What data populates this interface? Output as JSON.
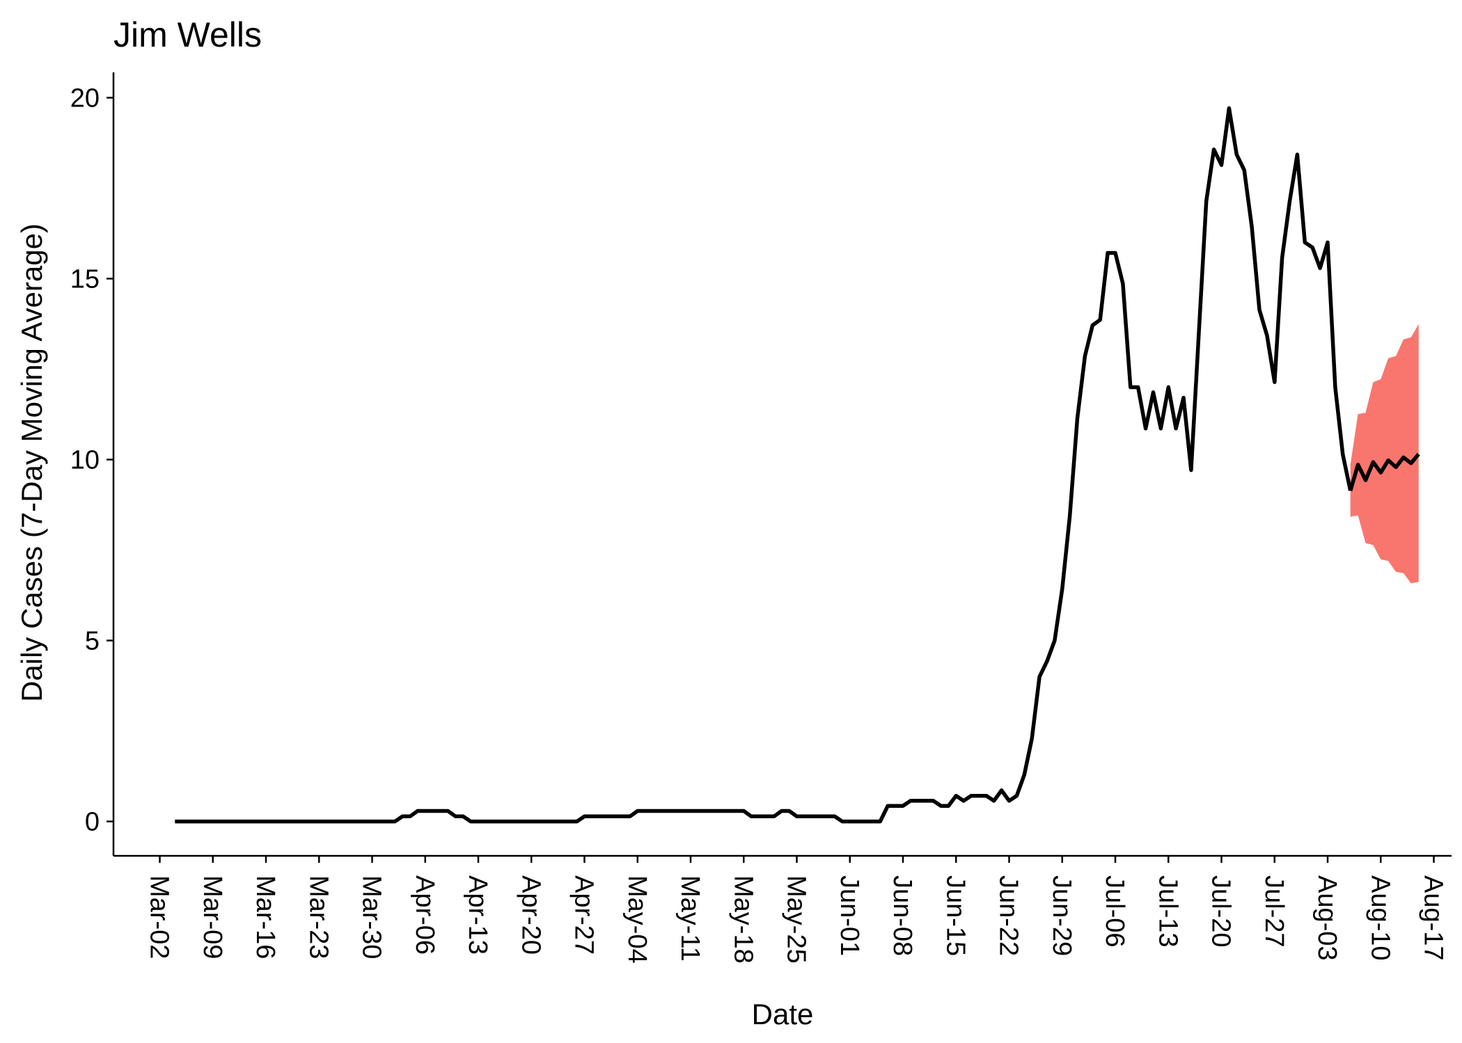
{
  "chart_data": {
    "type": "line",
    "title": "Jim Wells",
    "xlabel": "Date",
    "ylabel": "Daily Cases (7-Day Moving Average)",
    "x_ticks": [
      "Mar-02",
      "Mar-09",
      "Mar-16",
      "Mar-23",
      "Mar-30",
      "Apr-06",
      "Apr-13",
      "Apr-20",
      "Apr-27",
      "May-04",
      "May-11",
      "May-18",
      "May-25",
      "Jun-01",
      "Jun-08",
      "Jun-15",
      "Jun-22",
      "Jun-29",
      "Jul-06",
      "Jul-13",
      "Jul-20",
      "Jul-27",
      "Aug-03",
      "Aug-10",
      "Aug-17"
    ],
    "y_ticks": [
      "0",
      "5",
      "10",
      "15",
      "20"
    ],
    "ylim": [
      -0.95,
      20.7
    ],
    "grid": false,
    "legend": "none",
    "colors": {
      "line": "#000000",
      "band": "#f8766d"
    },
    "series": [
      {
        "points": [
          [
            "2020-03-04",
            0.0
          ],
          [
            "2020-03-05",
            0.0
          ],
          [
            "2020-03-06",
            0.0
          ],
          [
            "2020-03-07",
            0.0
          ],
          [
            "2020-03-08",
            0.0
          ],
          [
            "2020-03-09",
            0.0
          ],
          [
            "2020-03-10",
            0.0
          ],
          [
            "2020-03-11",
            0.0
          ],
          [
            "2020-03-12",
            0.0
          ],
          [
            "2020-03-13",
            0.0
          ],
          [
            "2020-03-14",
            0.0
          ],
          [
            "2020-03-15",
            0.0
          ],
          [
            "2020-03-16",
            0.0
          ],
          [
            "2020-03-17",
            0.0
          ],
          [
            "2020-03-18",
            0.0
          ],
          [
            "2020-03-19",
            0.0
          ],
          [
            "2020-03-20",
            0.0
          ],
          [
            "2020-03-21",
            0.0
          ],
          [
            "2020-03-22",
            0.0
          ],
          [
            "2020-03-23",
            0.0
          ],
          [
            "2020-03-24",
            0.0
          ],
          [
            "2020-03-25",
            0.0
          ],
          [
            "2020-03-26",
            0.0
          ],
          [
            "2020-03-27",
            0.0
          ],
          [
            "2020-03-28",
            0.0
          ],
          [
            "2020-03-29",
            0.0
          ],
          [
            "2020-03-30",
            0.0
          ],
          [
            "2020-03-31",
            0.0
          ],
          [
            "2020-04-01",
            0.0
          ],
          [
            "2020-04-02",
            0.0
          ],
          [
            "2020-04-03",
            0.14
          ],
          [
            "2020-04-04",
            0.14
          ],
          [
            "2020-04-05",
            0.29
          ],
          [
            "2020-04-06",
            0.29
          ],
          [
            "2020-04-07",
            0.29
          ],
          [
            "2020-04-08",
            0.29
          ],
          [
            "2020-04-09",
            0.29
          ],
          [
            "2020-04-10",
            0.14
          ],
          [
            "2020-04-11",
            0.14
          ],
          [
            "2020-04-12",
            0.0
          ],
          [
            "2020-04-13",
            0.0
          ],
          [
            "2020-04-14",
            0.0
          ],
          [
            "2020-04-15",
            0.0
          ],
          [
            "2020-04-16",
            0.0
          ],
          [
            "2020-04-17",
            0.0
          ],
          [
            "2020-04-18",
            0.0
          ],
          [
            "2020-04-19",
            0.0
          ],
          [
            "2020-04-20",
            0.0
          ],
          [
            "2020-04-21",
            0.0
          ],
          [
            "2020-04-22",
            0.0
          ],
          [
            "2020-04-23",
            0.0
          ],
          [
            "2020-04-24",
            0.0
          ],
          [
            "2020-04-25",
            0.0
          ],
          [
            "2020-04-26",
            0.0
          ],
          [
            "2020-04-27",
            0.14
          ],
          [
            "2020-04-28",
            0.14
          ],
          [
            "2020-04-29",
            0.14
          ],
          [
            "2020-04-30",
            0.14
          ],
          [
            "2020-05-01",
            0.14
          ],
          [
            "2020-05-02",
            0.14
          ],
          [
            "2020-05-03",
            0.14
          ],
          [
            "2020-05-04",
            0.29
          ],
          [
            "2020-05-05",
            0.29
          ],
          [
            "2020-05-06",
            0.29
          ],
          [
            "2020-05-07",
            0.29
          ],
          [
            "2020-05-08",
            0.29
          ],
          [
            "2020-05-09",
            0.29
          ],
          [
            "2020-05-10",
            0.29
          ],
          [
            "2020-05-11",
            0.29
          ],
          [
            "2020-05-12",
            0.29
          ],
          [
            "2020-05-13",
            0.29
          ],
          [
            "2020-05-14",
            0.29
          ],
          [
            "2020-05-15",
            0.29
          ],
          [
            "2020-05-16",
            0.29
          ],
          [
            "2020-05-17",
            0.29
          ],
          [
            "2020-05-18",
            0.29
          ],
          [
            "2020-05-19",
            0.14
          ],
          [
            "2020-05-20",
            0.14
          ],
          [
            "2020-05-21",
            0.14
          ],
          [
            "2020-05-22",
            0.14
          ],
          [
            "2020-05-23",
            0.29
          ],
          [
            "2020-05-24",
            0.29
          ],
          [
            "2020-05-25",
            0.14
          ],
          [
            "2020-05-26",
            0.14
          ],
          [
            "2020-05-27",
            0.14
          ],
          [
            "2020-05-28",
            0.14
          ],
          [
            "2020-05-29",
            0.14
          ],
          [
            "2020-05-30",
            0.14
          ],
          [
            "2020-05-31",
            0.0
          ],
          [
            "2020-06-01",
            0.0
          ],
          [
            "2020-06-02",
            0.0
          ],
          [
            "2020-06-03",
            0.0
          ],
          [
            "2020-06-04",
            0.0
          ],
          [
            "2020-06-05",
            0.0
          ],
          [
            "2020-06-06",
            0.43
          ],
          [
            "2020-06-07",
            0.43
          ],
          [
            "2020-06-08",
            0.43
          ],
          [
            "2020-06-09",
            0.57
          ],
          [
            "2020-06-10",
            0.57
          ],
          [
            "2020-06-11",
            0.57
          ],
          [
            "2020-06-12",
            0.57
          ],
          [
            "2020-06-13",
            0.43
          ],
          [
            "2020-06-14",
            0.43
          ],
          [
            "2020-06-15",
            0.71
          ],
          [
            "2020-06-16",
            0.57
          ],
          [
            "2020-06-17",
            0.71
          ],
          [
            "2020-06-18",
            0.71
          ],
          [
            "2020-06-19",
            0.71
          ],
          [
            "2020-06-20",
            0.57
          ],
          [
            "2020-06-21",
            0.86
          ],
          [
            "2020-06-22",
            0.57
          ],
          [
            "2020-06-23",
            0.71
          ],
          [
            "2020-06-24",
            1.29
          ],
          [
            "2020-06-25",
            2.29
          ],
          [
            "2020-06-26",
            4.0
          ],
          [
            "2020-06-27",
            4.43
          ],
          [
            "2020-06-28",
            5.0
          ],
          [
            "2020-06-29",
            6.43
          ],
          [
            "2020-06-30",
            8.43
          ],
          [
            "2020-07-01",
            11.14
          ],
          [
            "2020-07-02",
            12.86
          ],
          [
            "2020-07-03",
            13.71
          ],
          [
            "2020-07-04",
            13.86
          ],
          [
            "2020-07-05",
            15.71
          ],
          [
            "2020-07-06",
            15.71
          ],
          [
            "2020-07-07",
            14.86
          ],
          [
            "2020-07-08",
            12.0
          ],
          [
            "2020-07-09",
            12.0
          ],
          [
            "2020-07-10",
            10.86
          ],
          [
            "2020-07-11",
            11.86
          ],
          [
            "2020-07-12",
            10.86
          ],
          [
            "2020-07-13",
            12.0
          ],
          [
            "2020-07-14",
            10.86
          ],
          [
            "2020-07-15",
            11.71
          ],
          [
            "2020-07-16",
            9.71
          ],
          [
            "2020-07-17",
            13.43
          ],
          [
            "2020-07-18",
            17.14
          ],
          [
            "2020-07-19",
            18.57
          ],
          [
            "2020-07-20",
            18.14
          ],
          [
            "2020-07-21",
            19.71
          ],
          [
            "2020-07-22",
            18.43
          ],
          [
            "2020-07-23",
            18.0
          ],
          [
            "2020-07-24",
            16.43
          ],
          [
            "2020-07-25",
            14.14
          ],
          [
            "2020-07-26",
            13.43
          ],
          [
            "2020-07-27",
            12.14
          ],
          [
            "2020-07-28",
            15.57
          ],
          [
            "2020-07-29",
            17.14
          ],
          [
            "2020-07-30",
            18.43
          ],
          [
            "2020-07-31",
            16.0
          ],
          [
            "2020-08-01",
            15.86
          ],
          [
            "2020-08-02",
            15.29
          ],
          [
            "2020-08-03",
            16.0
          ],
          [
            "2020-08-04",
            12.0
          ],
          [
            "2020-08-05",
            10.14
          ],
          [
            "2020-08-06",
            9.14
          ]
        ]
      },
      {
        "points": [
          [
            "2020-08-06",
            9.14
          ],
          [
            "2020-08-07",
            9.86
          ],
          [
            "2020-08-08",
            9.43
          ],
          [
            "2020-08-09",
            9.93
          ],
          [
            "2020-08-10",
            9.64
          ],
          [
            "2020-08-11",
            9.98
          ],
          [
            "2020-08-12",
            9.79
          ],
          [
            "2020-08-13",
            10.06
          ],
          [
            "2020-08-14",
            9.9
          ],
          [
            "2020-08-15",
            10.15
          ]
        ],
        "lower": [
          8.42,
          8.46,
          7.69,
          7.64,
          7.24,
          7.2,
          6.9,
          6.86,
          6.58,
          6.62
        ],
        "upper": [
          9.86,
          11.26,
          11.29,
          12.14,
          12.22,
          12.8,
          12.86,
          13.32,
          13.38,
          13.74
        ]
      }
    ]
  }
}
